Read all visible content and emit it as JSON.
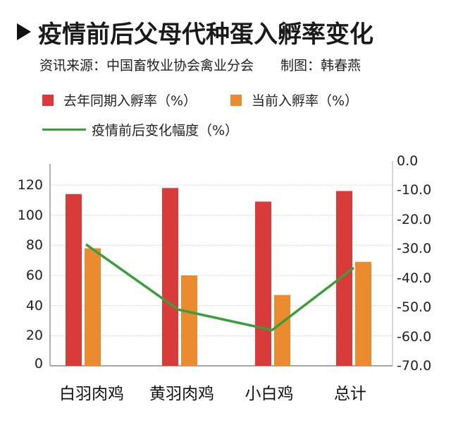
{
  "header": {
    "title": "疫情前后父母代种蛋入孵率变化",
    "source_label": "资讯来源：中国畜牧业协会禽业分会",
    "author_label": "制图：韩春燕"
  },
  "legend": {
    "items": [
      {
        "label": "去年同期入孵率（%）",
        "color": "#d93a3a",
        "type": "bar"
      },
      {
        "label": "当前入孵率（%）",
        "color": "#ea8c2e",
        "type": "bar"
      },
      {
        "label": "疫情前后变化幅度（%）",
        "color": "#3b9e3b",
        "type": "line"
      }
    ]
  },
  "axes": {
    "left_ticks": [
      "120",
      "100",
      "80",
      "60",
      "40",
      "20",
      "0"
    ],
    "right_ticks": [
      "0.0",
      "-10.0",
      "-20.0",
      "-30.0",
      "-40.0",
      "-50.0",
      "-60.0",
      "-70.0"
    ]
  },
  "chart_data": {
    "type": "bar",
    "title": "疫情前后父母代种蛋入孵率变化",
    "subtitle": "资讯来源：中国畜牧业协会禽业分会　制图：韩春燕",
    "categories": [
      "白羽肉鸡",
      "黄羽肉鸡",
      "小白鸡",
      "总计"
    ],
    "series": [
      {
        "name": "去年同期入孵率（%）",
        "type": "bar",
        "axis": "left",
        "color": "#d93a3a",
        "values": [
          114,
          118,
          109,
          116
        ]
      },
      {
        "name": "当前入孵率（%）",
        "type": "bar",
        "axis": "left",
        "color": "#ea8c2e",
        "values": [
          78,
          60,
          47,
          69
        ]
      },
      {
        "name": "疫情前后变化幅度（%）",
        "type": "line",
        "axis": "right",
        "color": "#3b9e3b",
        "values": [
          -28.5,
          -50.8,
          -57.8,
          -36.5
        ]
      }
    ],
    "xlabel": "",
    "ylabel": "",
    "ylim_left": [
      0,
      140
    ],
    "ylim_right": [
      -70,
      0
    ],
    "left_ticks": [
      0,
      20,
      40,
      60,
      80,
      100,
      120
    ],
    "right_ticks": [
      0,
      -10,
      -20,
      -30,
      -40,
      -50,
      -60,
      -70
    ],
    "grid": true,
    "legend_position": "top"
  }
}
